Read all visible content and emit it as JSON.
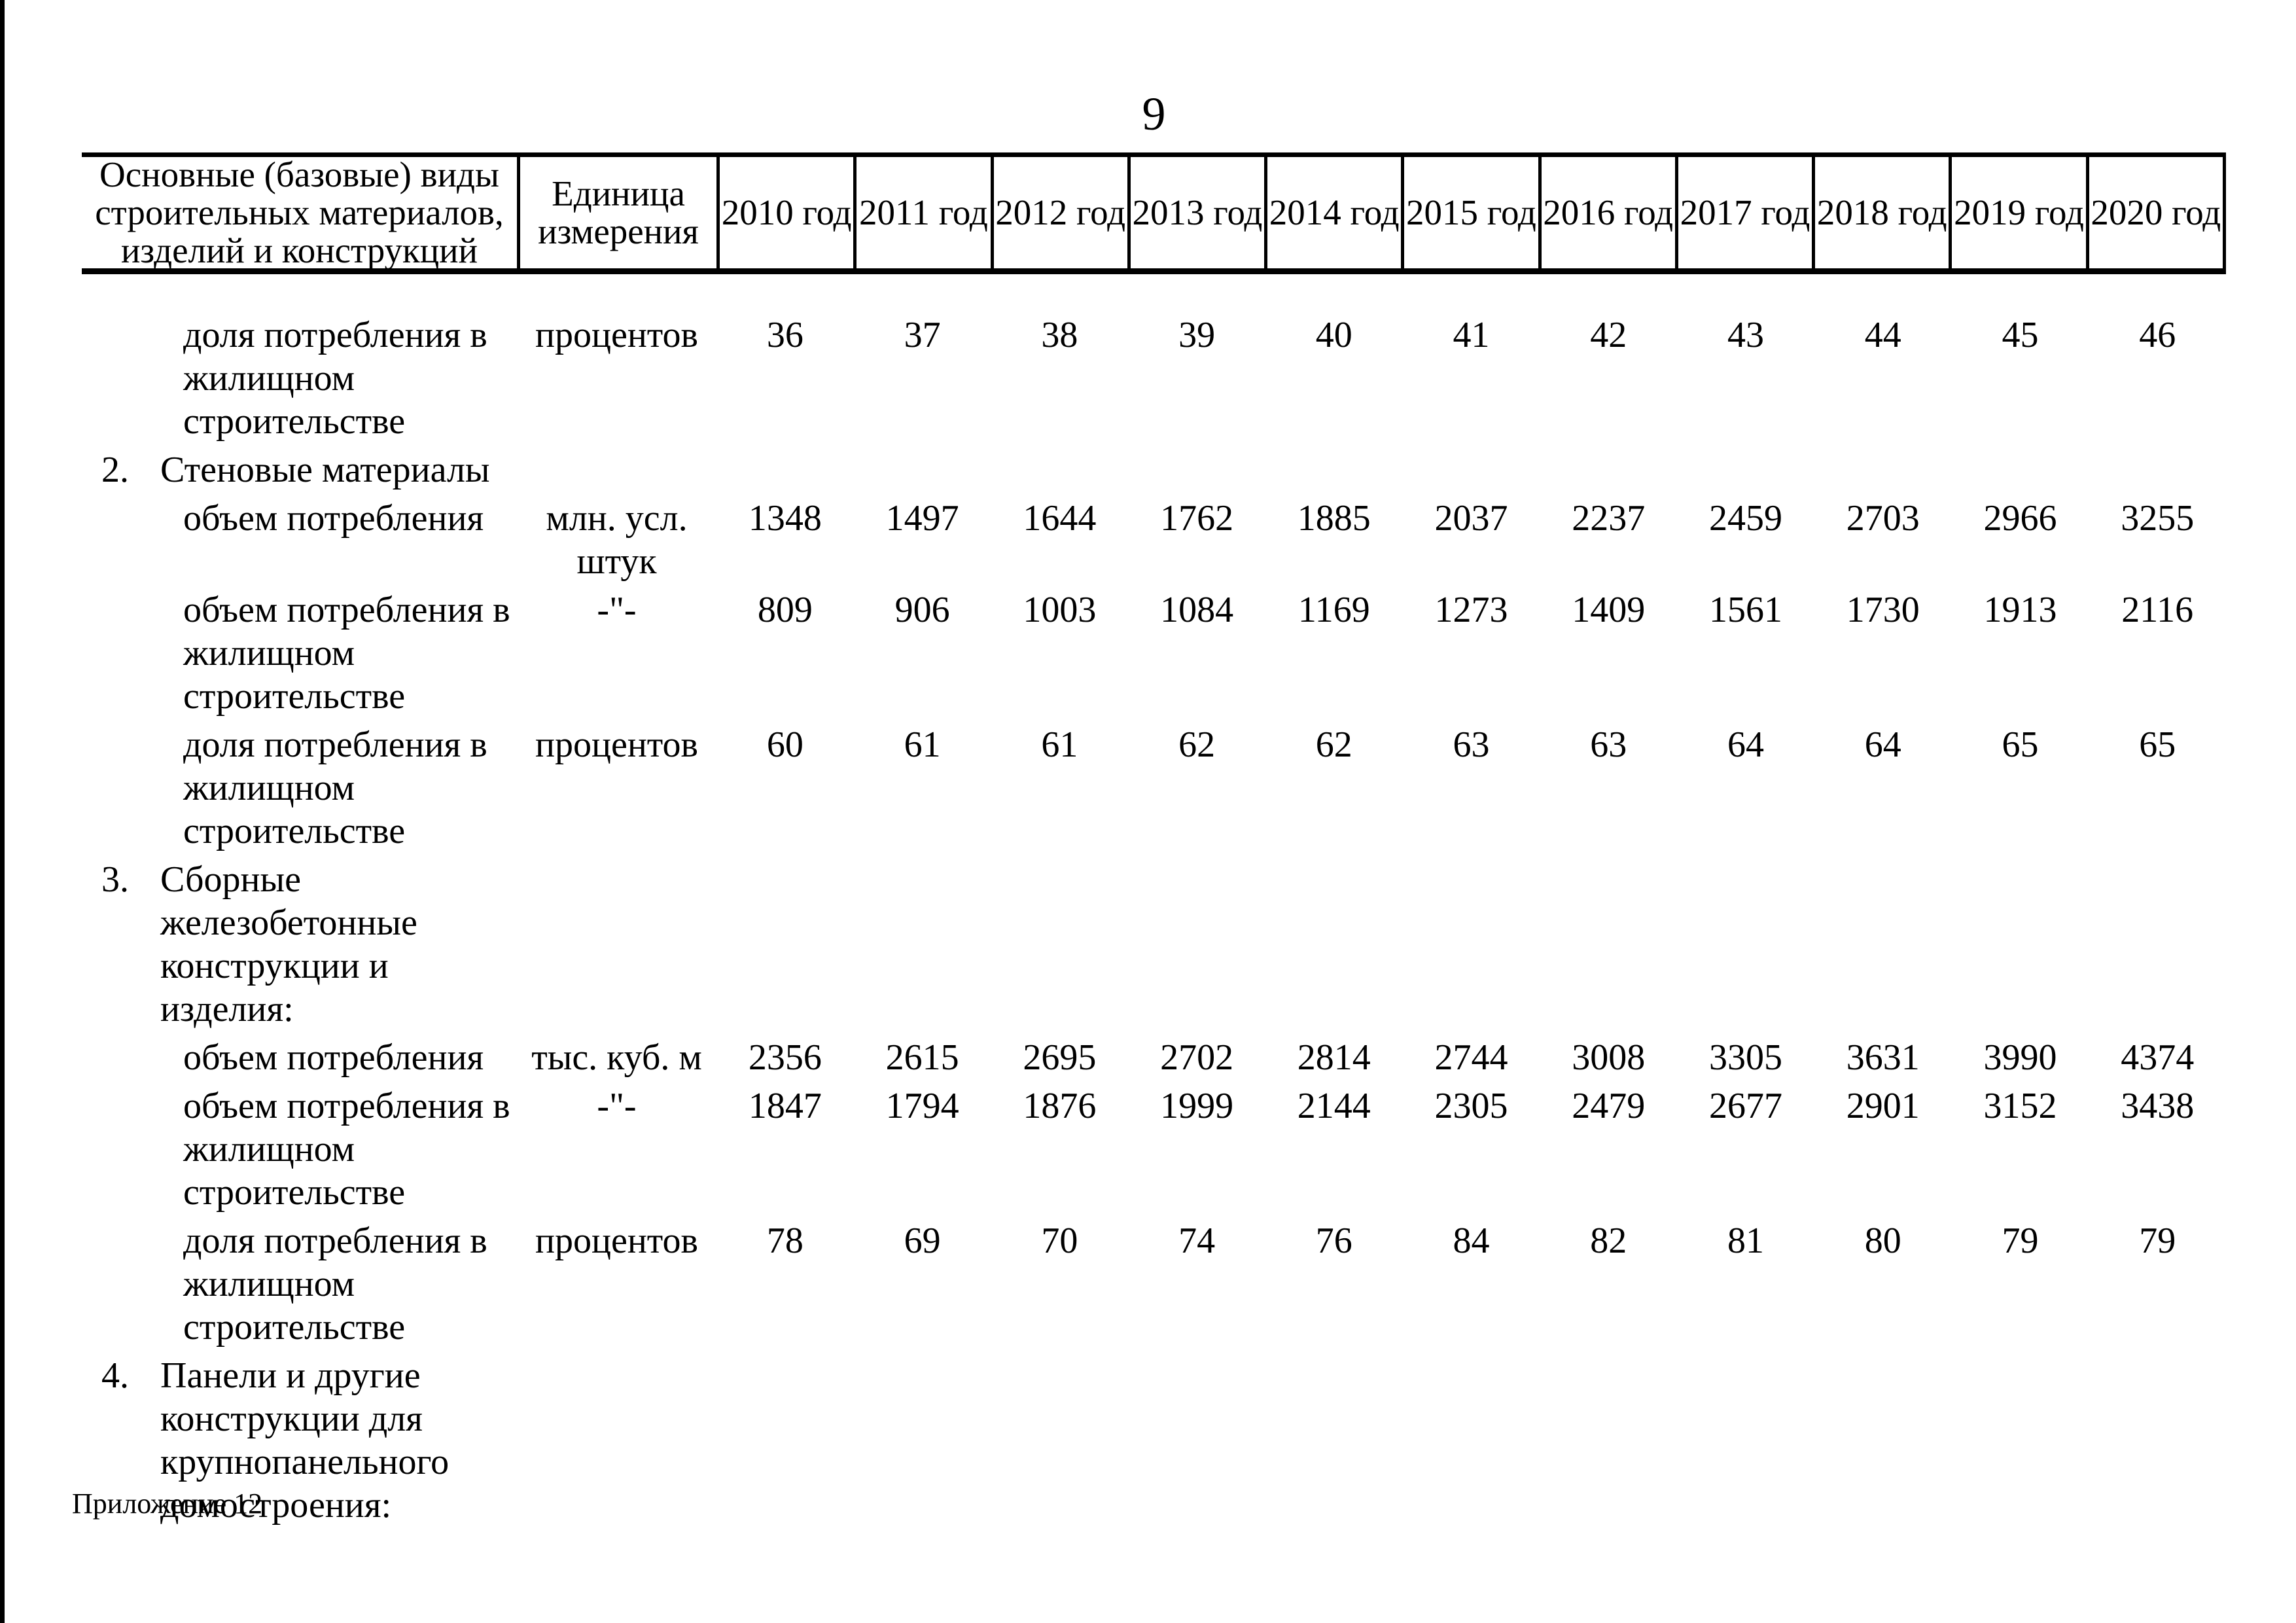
{
  "page": {
    "number": "9",
    "footer": "Приложение 12",
    "colors": {
      "ink": "#000000",
      "paper": "#ffffff"
    }
  },
  "table": {
    "header": {
      "col_materials": "Основные (базовые) виды\nстроительных материалов,\nизделий и конструкций",
      "col_unit": "Единица\nизмерения",
      "years": [
        "2010 год",
        "2011 год",
        "2012 год",
        "2013 год",
        "2014 год",
        "2015 год",
        "2016 год",
        "2017 год",
        "2018 год",
        "2019 год",
        "2020 год"
      ]
    },
    "rows": [
      {
        "type": "data",
        "label": "доля потребления в\nжилищном\nстроительстве",
        "unit": "процентов",
        "values": [
          36,
          37,
          38,
          39,
          40,
          41,
          42,
          43,
          44,
          45,
          46
        ]
      },
      {
        "type": "section",
        "num": "2.",
        "label": "Стеновые материалы"
      },
      {
        "type": "data",
        "label": "объем потребления",
        "unit": "млн. усл.\nштук",
        "values": [
          1348,
          1497,
          1644,
          1762,
          1885,
          2037,
          2237,
          2459,
          2703,
          2966,
          3255
        ]
      },
      {
        "type": "data",
        "label": "объем потребления в\nжилищном\nстроительстве",
        "unit": "-\"-",
        "values": [
          809,
          906,
          1003,
          1084,
          1169,
          1273,
          1409,
          1561,
          1730,
          1913,
          2116
        ]
      },
      {
        "type": "data",
        "label": "доля потребления в\nжилищном\nстроительстве",
        "unit": "процентов",
        "values": [
          60,
          61,
          61,
          62,
          62,
          63,
          63,
          64,
          64,
          65,
          65
        ]
      },
      {
        "type": "section",
        "num": "3.",
        "label": "Сборные\nжелезобетонные\nконструкции и изделия:"
      },
      {
        "type": "data",
        "label": "объем потребления",
        "unit": "тыс. куб. м",
        "values": [
          2356,
          2615,
          2695,
          2702,
          2814,
          2744,
          3008,
          3305,
          3631,
          3990,
          4374
        ]
      },
      {
        "type": "data",
        "label": "объем потребления в\nжилищном\nстроительстве",
        "unit": "-\"-",
        "values": [
          1847,
          1794,
          1876,
          1999,
          2144,
          2305,
          2479,
          2677,
          2901,
          3152,
          3438
        ]
      },
      {
        "type": "data",
        "label": "доля потребления в\nжилищном\nстроительстве",
        "unit": "процентов",
        "values": [
          78,
          69,
          70,
          74,
          76,
          84,
          82,
          81,
          80,
          79,
          79
        ]
      },
      {
        "type": "section",
        "num": "4.",
        "label": "Панели и другие\nконструкции для\nкрупнопанельного\nдомостроения:"
      }
    ]
  }
}
